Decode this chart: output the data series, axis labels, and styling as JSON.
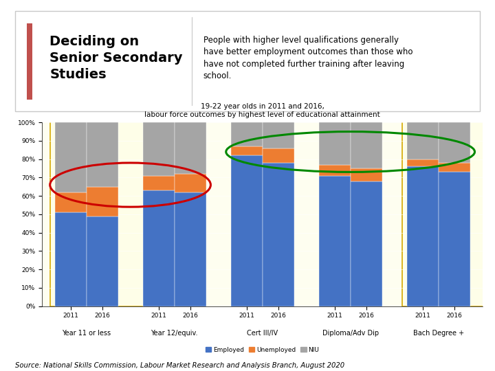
{
  "title_line1": "19-22 year olds in 2011 and 2016,",
  "title_line2": "labour force outcomes by highest level of educational attainment",
  "header_title": "Deciding on\nSenior Secondary\nStudies",
  "header_text": "People with higher level qualifications generally\nhave better employment outcomes than those who\nhave not completed further training after leaving\nschool.",
  "source_text": "Source: National Skills Commission, Labour Market Research and Analysis Branch, August 2020",
  "categories": [
    "Year 11 or less",
    "Year 12/equiv.",
    "Cert III/IV",
    "Diploma/Adv Dip",
    "Bach Degree +"
  ],
  "years": [
    "2011",
    "2016"
  ],
  "employed": [
    51,
    49,
    63,
    62,
    82,
    78,
    71,
    68,
    76,
    73
  ],
  "unemployed": [
    11,
    16,
    8,
    10,
    5,
    8,
    6,
    7,
    4,
    5
  ],
  "niu": [
    38,
    35,
    29,
    28,
    13,
    14,
    23,
    25,
    20,
    22
  ],
  "colors": {
    "employed": "#4472C4",
    "unemployed": "#ED7D31",
    "niu": "#A5A5A5",
    "yellow_box_fill": "#FEFEE8",
    "yellow_border": "#D4A800",
    "red_ellipse": "#CC0000",
    "green_ellipse": "#008800",
    "header_bg": "#FFFFFF",
    "header_border": "#C0C0C0",
    "red_accent": "#C0504D",
    "chart_bg": "#FEFEF0",
    "page_bg": "#FFFFFF"
  },
  "ylim": [
    0,
    1.0
  ],
  "yticks": [
    0,
    0.1,
    0.2,
    0.3,
    0.4,
    0.5,
    0.6,
    0.7,
    0.8,
    0.9,
    1.0
  ],
  "ytick_labels": [
    "0%",
    "10%",
    "20%",
    "30%",
    "40%",
    "50%",
    "60%",
    "70%",
    "80%",
    "90%",
    "100%"
  ]
}
